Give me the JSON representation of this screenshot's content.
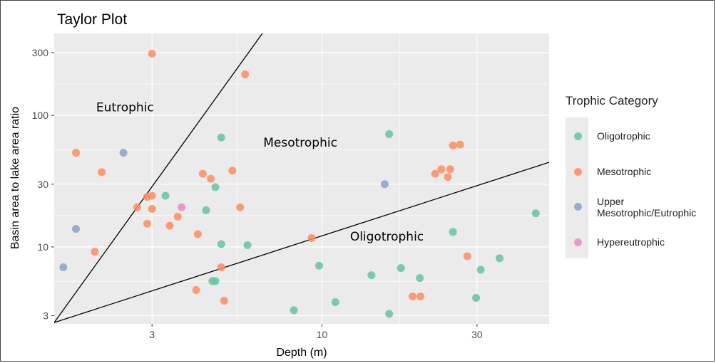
{
  "chart_data": {
    "type": "scatter",
    "title": "Taylor Plot",
    "xlabel": "Depth (m)",
    "ylabel": "Basin area to lake area ratio",
    "x_scale": "log10",
    "y_scale": "log10",
    "xlim": [
      1.5,
      50
    ],
    "ylim": [
      2.6,
      420
    ],
    "x_ticks": [
      3,
      10,
      30
    ],
    "x_tick_labels": [
      "3",
      "10",
      "30"
    ],
    "y_ticks": [
      3,
      10,
      30,
      100,
      300
    ],
    "y_tick_labels": [
      "3",
      "10",
      "30",
      "100",
      "300"
    ],
    "grid": true,
    "legend": {
      "title": "Trophic Category",
      "placement": "right"
    },
    "series": [
      {
        "name": "Oligotrophic",
        "color": "#66c2a5",
        "points": [
          [
            3.3,
            24.5
          ],
          [
            4.4,
            19
          ],
          [
            4.7,
            28.5
          ],
          [
            4.9,
            68
          ],
          [
            4.9,
            10.5
          ],
          [
            5.9,
            10.3
          ],
          [
            4.6,
            5.5
          ],
          [
            4.7,
            5.5
          ],
          [
            8.2,
            3.3
          ],
          [
            9.8,
            7.2
          ],
          [
            11,
            3.8
          ],
          [
            14.2,
            6.1
          ],
          [
            16.1,
            72
          ],
          [
            16.1,
            3.1
          ],
          [
            17.5,
            6.9
          ],
          [
            20,
            5.8
          ],
          [
            25.3,
            13
          ],
          [
            29.8,
            4.1
          ],
          [
            30.8,
            6.7
          ],
          [
            35.2,
            8.2
          ],
          [
            45.5,
            18
          ]
        ]
      },
      {
        "name": "Mesotrophic",
        "color": "#fc8d62",
        "points": [
          [
            3.0,
            295
          ],
          [
            5.8,
            205
          ],
          [
            1.75,
            52
          ],
          [
            2.1,
            37
          ],
          [
            2.7,
            20
          ],
          [
            2.9,
            24
          ],
          [
            2.9,
            15
          ],
          [
            3.0,
            24.5
          ],
          [
            3.0,
            19.5
          ],
          [
            3.4,
            14.5
          ],
          [
            3.6,
            17
          ],
          [
            4.15,
            12.5
          ],
          [
            4.3,
            36
          ],
          [
            4.55,
            33
          ],
          [
            5.3,
            38
          ],
          [
            5.6,
            20
          ],
          [
            4.9,
            7
          ],
          [
            5,
            3.9
          ],
          [
            4.1,
            4.7
          ],
          [
            2.0,
            9.2
          ],
          [
            9.3,
            11.7
          ],
          [
            19,
            4.2
          ],
          [
            20.1,
            4.2
          ],
          [
            22.3,
            36
          ],
          [
            23.3,
            39
          ],
          [
            24.4,
            34
          ],
          [
            24.8,
            39
          ],
          [
            25.3,
            59
          ],
          [
            26.6,
            60
          ],
          [
            28,
            8.5
          ]
        ]
      },
      {
        "name": "Upper Mesotrophic/Eutrophic",
        "color": "#8da0cb",
        "points": [
          [
            1.6,
            7
          ],
          [
            1.75,
            13.7
          ],
          [
            2.45,
            52
          ],
          [
            15.6,
            30
          ]
        ]
      },
      {
        "name": "Hypereutrophic",
        "color": "#e78ac3",
        "points": [
          [
            3.7,
            20
          ]
        ]
      }
    ],
    "lines": [
      {
        "from": [
          1.5,
          2.66
        ],
        "to": [
          6.6,
          430
        ]
      },
      {
        "from": [
          1.5,
          2.66
        ],
        "to": [
          50,
          44
        ]
      }
    ],
    "annotations": [
      {
        "text": "Eutrophic",
        "x": 2.02,
        "y": 107
      },
      {
        "text": "Mesotrophic",
        "x": 6.6,
        "y": 58
      },
      {
        "text": "Oligotrophic",
        "x": 12.2,
        "y": 11.2
      }
    ]
  }
}
